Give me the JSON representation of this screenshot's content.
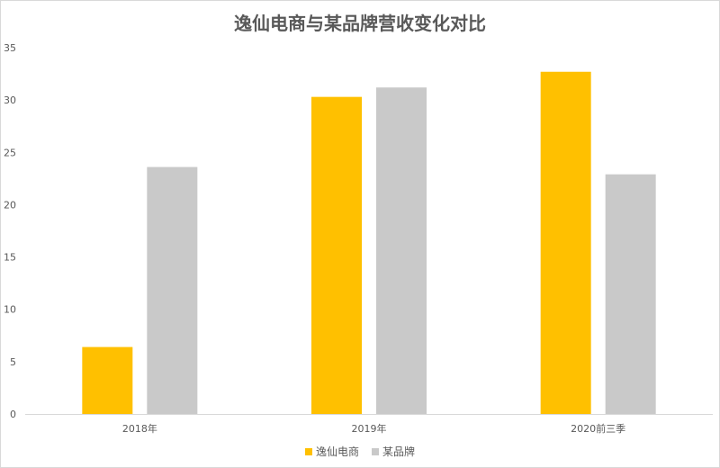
{
  "chart_data": {
    "type": "bar",
    "title": "逸仙电商与某品牌营收变化对比",
    "categories": [
      "2018年",
      "2019年",
      "2020前三季"
    ],
    "series": [
      {
        "name": "逸仙电商",
        "values": [
          6.4,
          30.3,
          32.7
        ],
        "color": "#FFC000"
      },
      {
        "name": "某品牌",
        "values": [
          23.6,
          31.2,
          22.9
        ],
        "color": "#C9C9C9"
      }
    ],
    "ylim": [
      0,
      35
    ],
    "yticks": [
      0,
      5,
      10,
      15,
      20,
      25,
      30,
      35
    ],
    "grid": false,
    "legend": "bottom"
  }
}
